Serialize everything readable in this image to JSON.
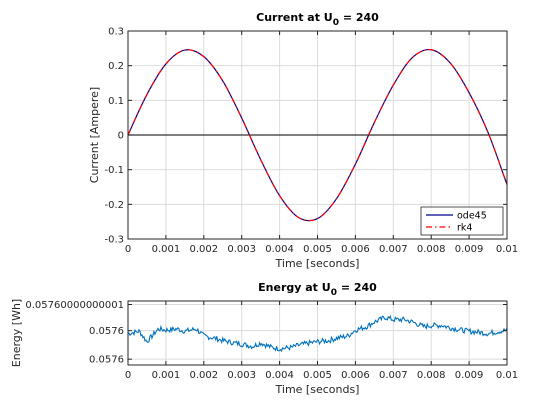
{
  "chart_data": [
    {
      "type": "line",
      "title": "Current at U",
      "title_subscript": "0",
      "title_suffix": " = 240",
      "xlabel": "Time [seconds]",
      "ylabel": "Current [Ampere]",
      "xlim": [
        0,
        0.01
      ],
      "ylim": [
        -0.3,
        0.3
      ],
      "grid": true,
      "legend_position": "bottom-right",
      "x_ticks": [
        0,
        0.001,
        0.002,
        0.003,
        0.004,
        0.005,
        0.006,
        0.007,
        0.008,
        0.009,
        0.01
      ],
      "x_tick_labels": [
        "0",
        "0.001",
        "0.002",
        "0.003",
        "0.004",
        "0.005",
        "0.006",
        "0.007",
        "0.008",
        "0.009",
        "0.01"
      ],
      "y_ticks": [
        -0.3,
        -0.2,
        -0.1,
        0,
        0.1,
        0.2,
        0.3
      ],
      "y_tick_labels": [
        "-0.3",
        "-0.2",
        "-0.1",
        "0",
        "0.1",
        "0.2",
        "0.3"
      ],
      "x": [
        0,
        0.0005,
        0.001,
        0.0015,
        0.002,
        0.0025,
        0.003,
        0.0035,
        0.004,
        0.0045,
        0.005,
        0.0055,
        0.006,
        0.0065,
        0.007,
        0.0075,
        0.008,
        0.0085,
        0.009,
        0.0095,
        0.01
      ],
      "series": [
        {
          "name": "ode45",
          "color": "#00008b",
          "style": "solid",
          "values": [
            0.0,
            0.117,
            0.205,
            0.245,
            0.226,
            0.156,
            0.049,
            -0.071,
            -0.175,
            -0.238,
            -0.241,
            -0.184,
            -0.084,
            0.036,
            0.144,
            0.223,
            0.246,
            0.208,
            0.122,
            0.007,
            -0.143
          ]
        },
        {
          "name": "rk4",
          "color": "#ff0000",
          "style": "dashdot",
          "values": [
            0.0,
            0.117,
            0.205,
            0.245,
            0.226,
            0.156,
            0.049,
            -0.071,
            -0.175,
            -0.238,
            -0.241,
            -0.184,
            -0.084,
            0.036,
            0.144,
            0.223,
            0.246,
            0.208,
            0.122,
            0.007,
            -0.143
          ]
        }
      ],
      "reference_line": {
        "y": 0,
        "color": "#333333"
      }
    },
    {
      "type": "line",
      "title": "Energy at U",
      "title_subscript": "0",
      "title_suffix": " = 240",
      "xlabel": "Time [seconds]",
      "ylabel": "Energy [Wh]",
      "xlim": [
        0,
        0.01
      ],
      "grid": true,
      "x_ticks": [
        0,
        0.001,
        0.002,
        0.003,
        0.004,
        0.005,
        0.006,
        0.007,
        0.008,
        0.009,
        0.01
      ],
      "x_tick_labels": [
        "0",
        "0.001",
        "0.002",
        "0.003",
        "0.004",
        "0.005",
        "0.006",
        "0.007",
        "0.008",
        "0.009",
        "0.01"
      ],
      "y_tick_labels": [
        "0.05760000000001",
        "0.0576",
        "0.0576"
      ],
      "x": [
        0,
        0.0003,
        0.0005,
        0.0008,
        0.001,
        0.0013,
        0.0015,
        0.0018,
        0.002,
        0.0023,
        0.0025,
        0.0028,
        0.003,
        0.0033,
        0.0035,
        0.0038,
        0.004,
        0.0043,
        0.0045,
        0.0048,
        0.005,
        0.0053,
        0.0055,
        0.0058,
        0.006,
        0.0063,
        0.0065,
        0.0068,
        0.007,
        0.0073,
        0.0075,
        0.0078,
        0.008,
        0.0083,
        0.0085,
        0.0088,
        0.009,
        0.0093,
        0.0095,
        0.0098,
        0.01
      ],
      "series": [
        {
          "name": "",
          "color": "#0072bd",
          "style": "solid",
          "values": [
            0.2,
            0.4,
            -0.5,
            0.6,
            0.5,
            0.6,
            0.4,
            0.6,
            0.0,
            -0.2,
            -0.4,
            -0.6,
            -0.7,
            -0.9,
            -0.6,
            -1.0,
            -1.1,
            -1.0,
            -0.8,
            -0.6,
            -0.5,
            -0.4,
            -0.2,
            0.0,
            0.5,
            0.8,
            1.2,
            1.6,
            1.4,
            1.4,
            1.2,
            0.8,
            0.9,
            0.9,
            0.7,
            0.5,
            0.4,
            0.3,
            0.2,
            0.4,
            0.5
          ]
        }
      ]
    }
  ]
}
